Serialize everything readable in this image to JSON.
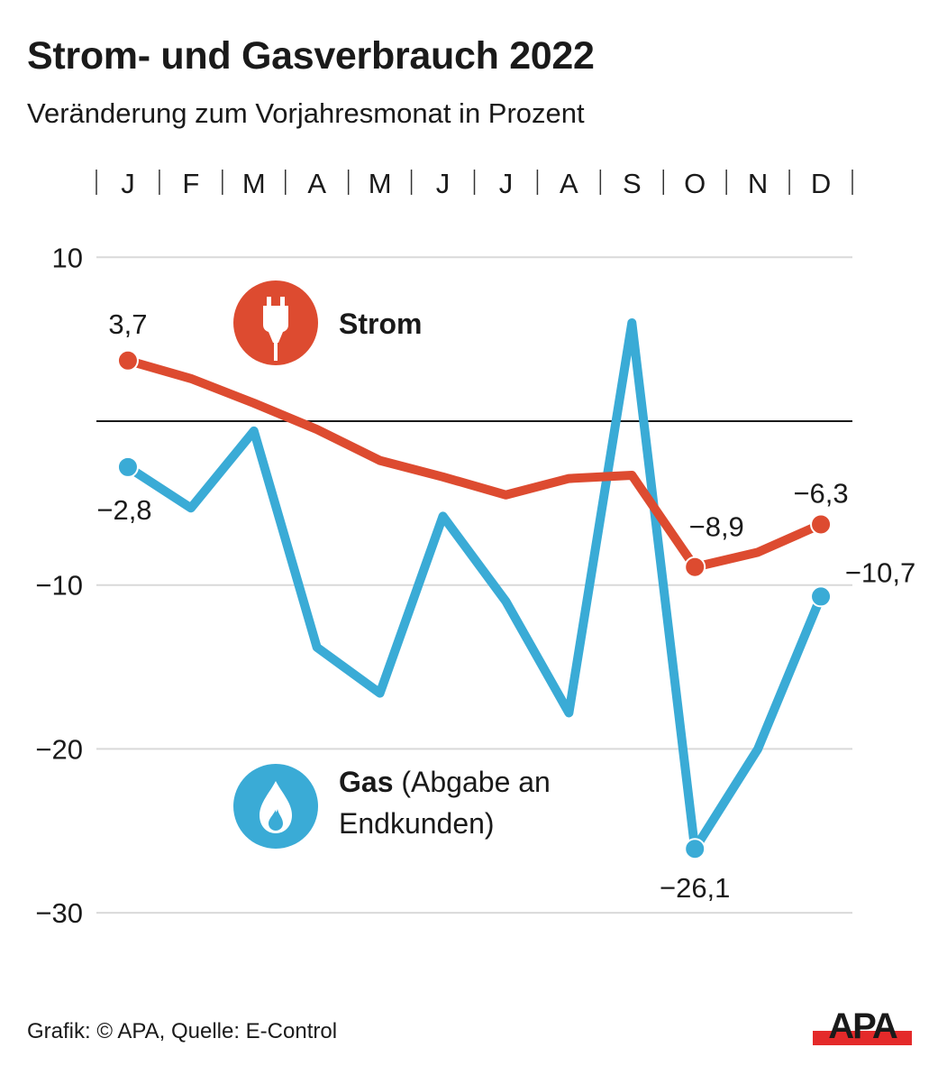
{
  "header": {
    "title": "Strom- und Gasverbrauch 2022",
    "subtitle": "Veränderung zum Vorjahresmonat in Prozent"
  },
  "footer": {
    "source": "Grafik: © APA, Quelle: E-Control",
    "logo_text": "APA",
    "logo_colors": {
      "text": "#1a1a1a",
      "bar": "#e42a2a"
    }
  },
  "legend": {
    "strom": {
      "label": "Strom",
      "icon": "plug-icon"
    },
    "gas": {
      "label_bold": "Gas",
      "label_rest_line1": " (Abgabe an",
      "label_line2": "Endkunden)",
      "icon": "flame-icon"
    }
  },
  "chart_data": {
    "type": "line",
    "title": "Strom- und Gasverbrauch 2022",
    "subtitle": "Veränderung zum Vorjahresmonat in Prozent",
    "xlabel": "",
    "ylabel": "",
    "categories": [
      "J",
      "F",
      "M",
      "A",
      "M",
      "J",
      "J",
      "A",
      "S",
      "O",
      "N",
      "D"
    ],
    "ylim": [
      -30,
      10
    ],
    "yticks": [
      10,
      -10,
      -20,
      -30
    ],
    "ytick_labels": [
      "10",
      "−10",
      "−20",
      "−30"
    ],
    "zero_line": true,
    "grid": true,
    "series": [
      {
        "name": "Strom",
        "color": "#dd4b30",
        "values": [
          3.7,
          2.6,
          1.1,
          -0.5,
          -2.4,
          -3.4,
          -4.5,
          -3.5,
          -3.3,
          -8.9,
          -8.0,
          -6.3
        ],
        "labels": [
          {
            "index": 0,
            "text": "3,7"
          },
          {
            "index": 9,
            "text": "−8,9"
          },
          {
            "index": 11,
            "text": "−6,3"
          }
        ],
        "markers": [
          0,
          9,
          11
        ]
      },
      {
        "name": "Gas (Abgabe an Endkunden)",
        "color": "#3aabd6",
        "values": [
          -2.8,
          -5.3,
          -0.6,
          -13.8,
          -16.6,
          -5.8,
          -11.0,
          -17.8,
          6.0,
          -26.1,
          -20.0,
          -10.7
        ],
        "labels": [
          {
            "index": 0,
            "text": "−2,8"
          },
          {
            "index": 9,
            "text": "−26,1"
          },
          {
            "index": 11,
            "text": "−10,7"
          }
        ],
        "markers": [
          0,
          9,
          11
        ]
      }
    ],
    "legend": [
      "Strom",
      "Gas (Abgabe an Endkunden)"
    ]
  }
}
